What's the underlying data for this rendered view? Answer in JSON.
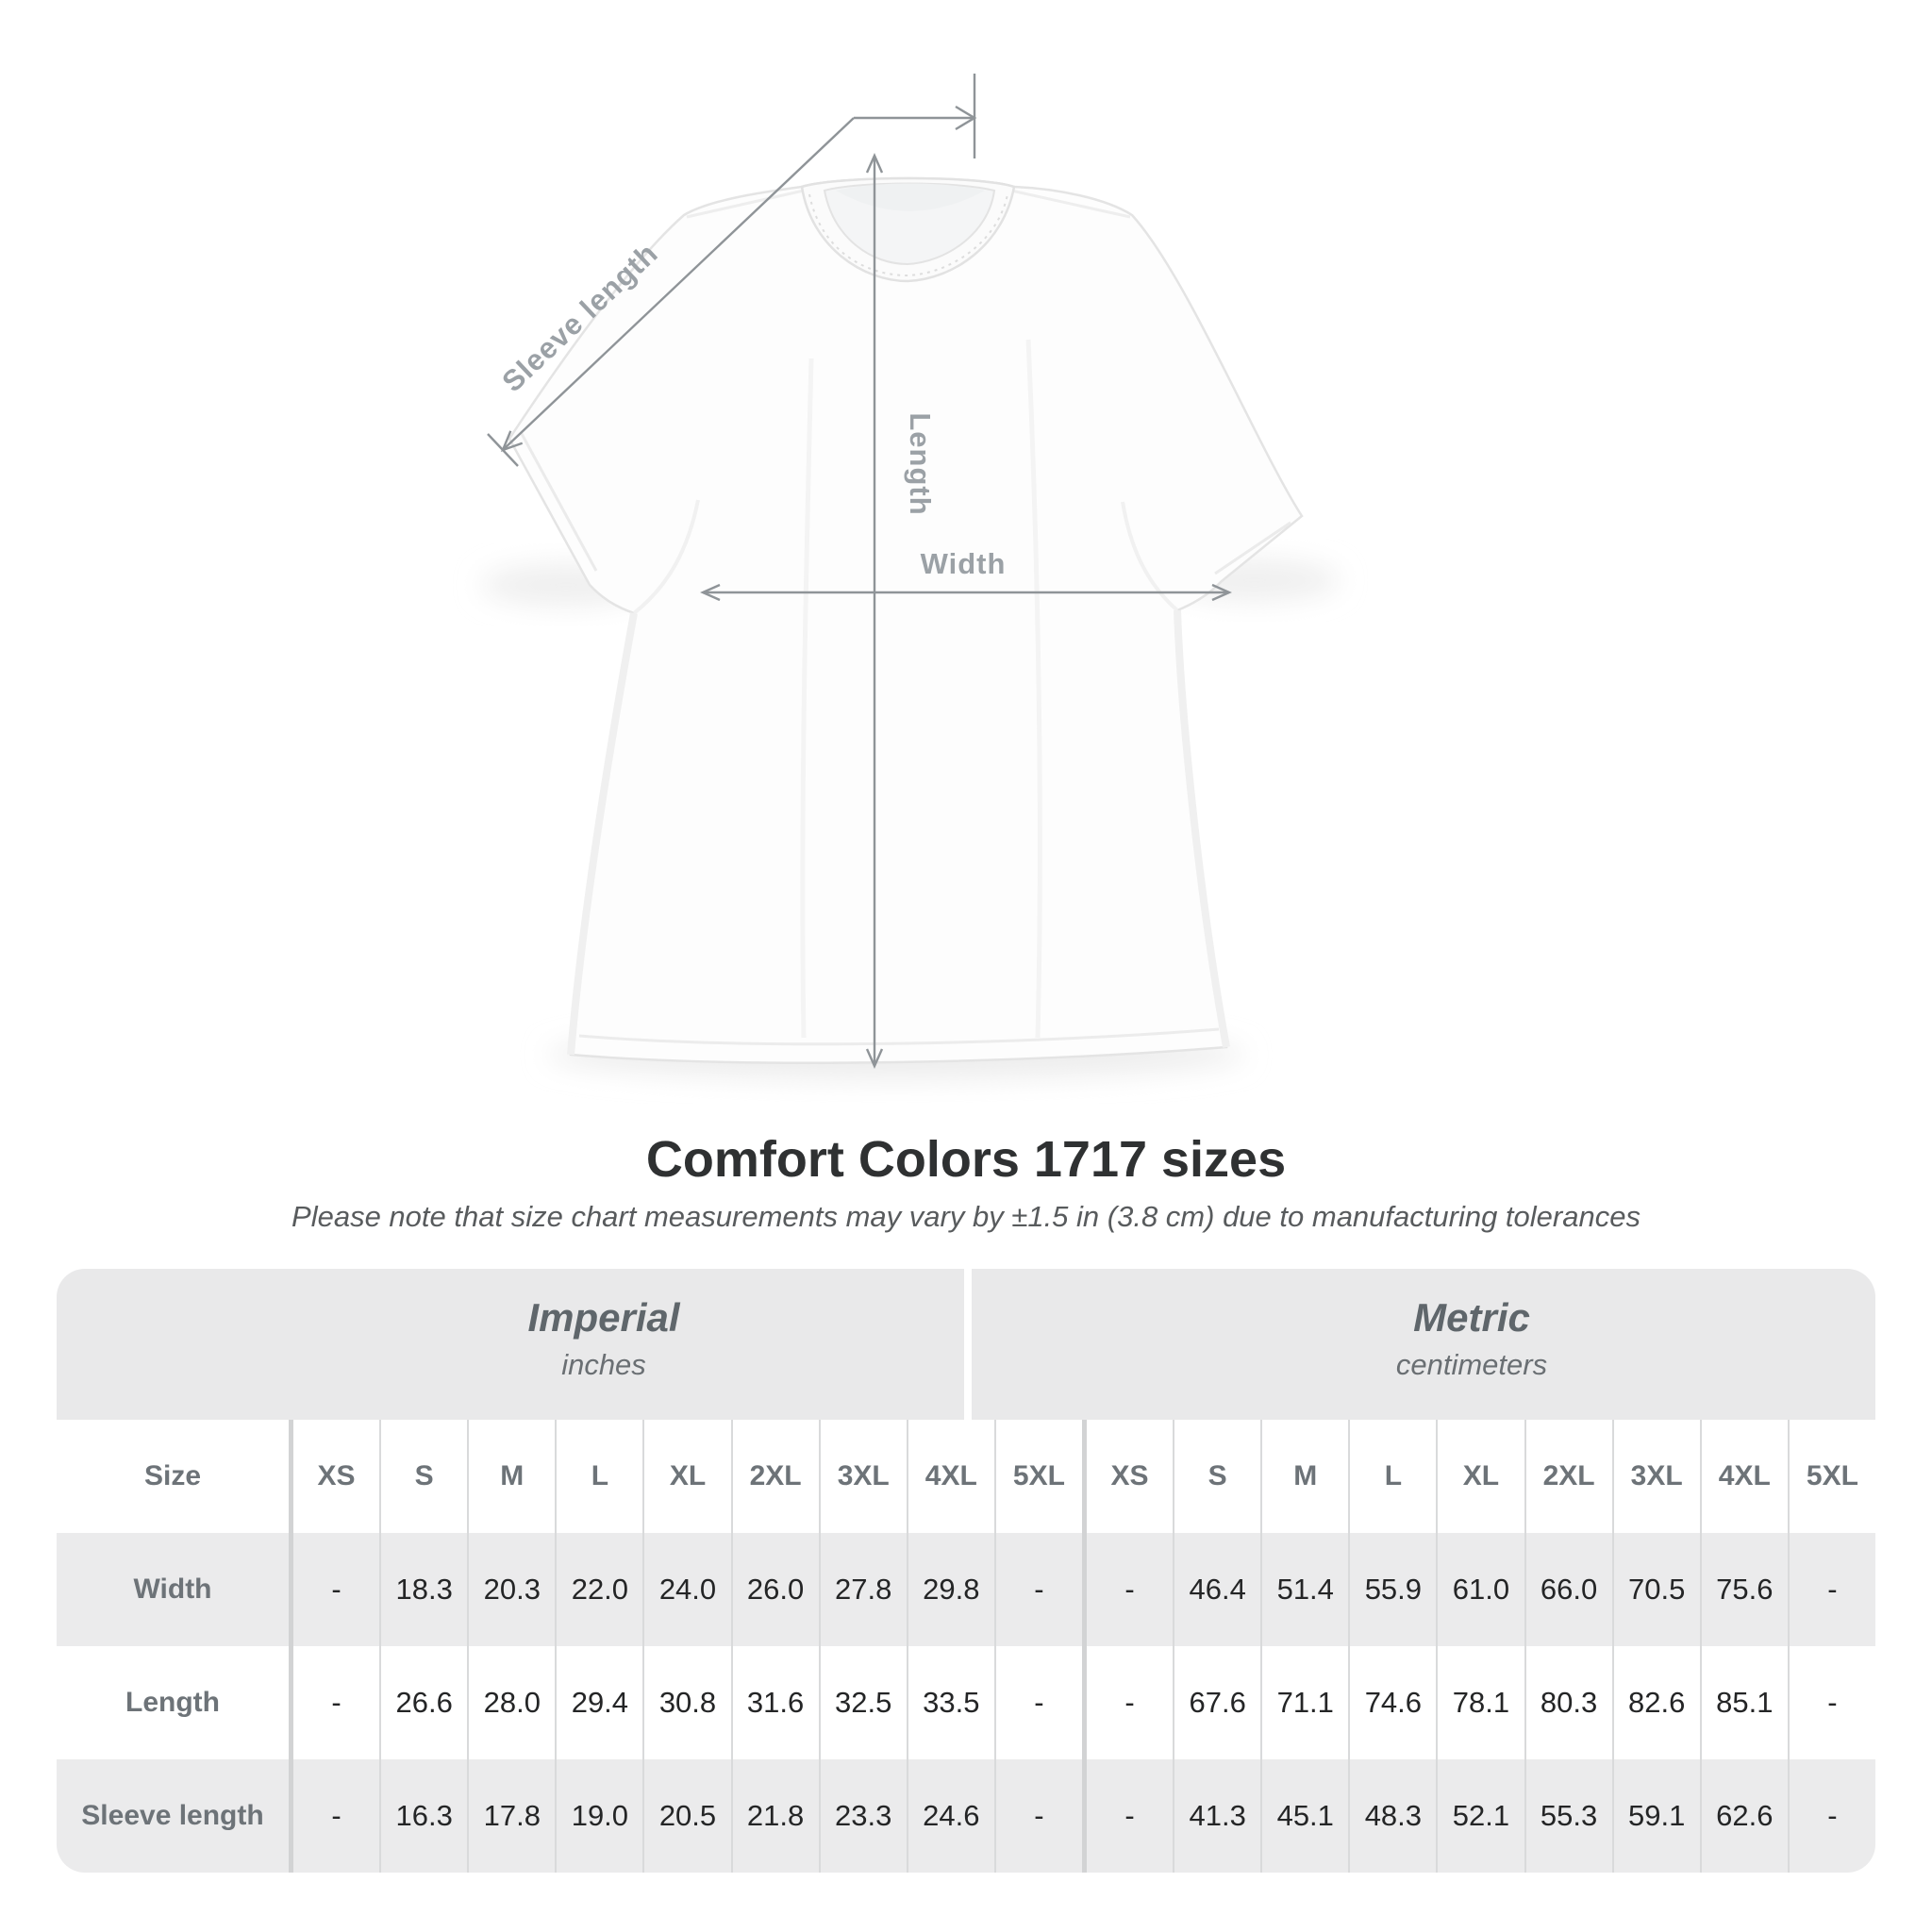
{
  "figure": {
    "labels": {
      "sleeve_length": "Sleeve length",
      "length": "Length",
      "width": "Width"
    }
  },
  "title": "Comfort Colors 1717 sizes",
  "subtitle": "Please note that size chart measurements may vary by ±1.5 in (3.8 cm) due to manufacturing tolerances",
  "chart_data": {
    "type": "table",
    "title": "Comfort Colors 1717 sizes",
    "tolerance_note": "Please note that size chart measurements may vary by ±1.5 in (3.8 cm) due to manufacturing tolerances",
    "unit_groups": [
      {
        "label": "Imperial",
        "sublabel": "inches"
      },
      {
        "label": "Metric",
        "sublabel": "centimeters"
      }
    ],
    "size_header": "Size",
    "size_columns": [
      "XS",
      "S",
      "M",
      "L",
      "XL",
      "2XL",
      "3XL",
      "4XL",
      "5XL"
    ],
    "rows": [
      {
        "label": "Width",
        "imperial": [
          "-",
          "18.3",
          "20.3",
          "22.0",
          "24.0",
          "26.0",
          "27.8",
          "29.8",
          "-"
        ],
        "metric": [
          "-",
          "46.4",
          "51.4",
          "55.9",
          "61.0",
          "66.0",
          "70.5",
          "75.6",
          "-"
        ]
      },
      {
        "label": "Length",
        "imperial": [
          "-",
          "26.6",
          "28.0",
          "29.4",
          "30.8",
          "31.6",
          "32.5",
          "33.5",
          "-"
        ],
        "metric": [
          "-",
          "67.6",
          "71.1",
          "74.6",
          "78.1",
          "80.3",
          "82.6",
          "85.1",
          "-"
        ]
      },
      {
        "label": "Sleeve length",
        "imperial": [
          "-",
          "16.3",
          "17.8",
          "19.0",
          "20.5",
          "21.8",
          "23.3",
          "24.6",
          "-"
        ],
        "metric": [
          "-",
          "41.3",
          "45.1",
          "48.3",
          "52.1",
          "55.3",
          "59.1",
          "62.6",
          "-"
        ]
      }
    ]
  },
  "colors": {
    "accent_gray_header": "#e9e9ea",
    "accent_gray_row": "#ebebec",
    "dim_line": "#8f9498",
    "dim_label": "#9ba1a6",
    "data_text": "#242526",
    "header_text": "#6d7378"
  }
}
